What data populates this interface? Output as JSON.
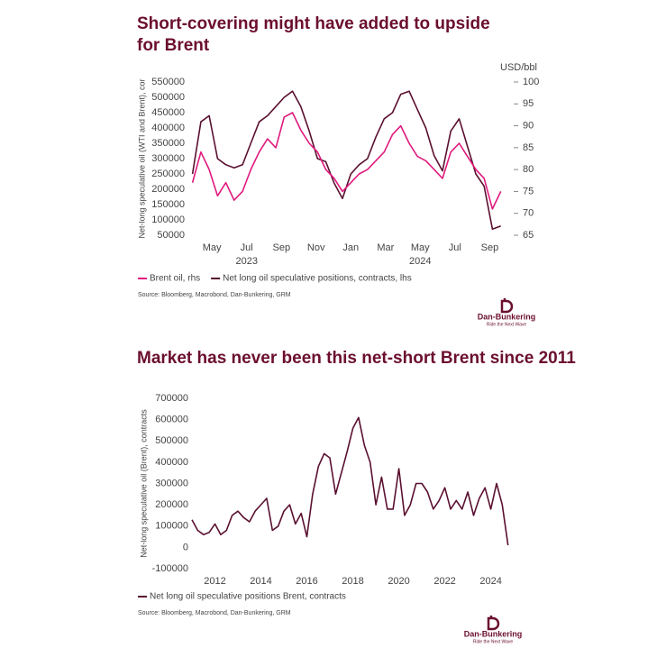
{
  "chart_data": [
    {
      "type": "line",
      "title": "Short-covering might have added to upside for Brent",
      "ylabel": "Net-long speculative oil (WTI and Brent), cor",
      "y2label": "USD/bbl",
      "x": [
        2023.24,
        2023.28,
        2023.32,
        2023.36,
        2023.4,
        2023.44,
        2023.48,
        2023.52,
        2023.56,
        2023.6,
        2023.64,
        2023.68,
        2023.72,
        2023.76,
        2023.8,
        2023.84,
        2023.88,
        2023.92,
        2023.96,
        2024.0,
        2024.04,
        2024.08,
        2024.12,
        2024.16,
        2024.2,
        2024.24,
        2024.28,
        2024.32,
        2024.36,
        2024.4,
        2024.44,
        2024.48,
        2024.52,
        2024.56,
        2024.6,
        2024.64,
        2024.68,
        2024.72
      ],
      "series": [
        {
          "name": "Brent oil, rhs",
          "color": "#e0197d",
          "axis": "y2",
          "values": [
            77,
            84,
            80,
            74,
            77,
            73,
            75,
            80,
            84,
            87,
            85,
            92,
            93,
            89,
            86,
            84,
            80,
            78,
            75,
            77,
            79,
            80,
            82,
            84,
            88,
            90,
            86,
            83,
            82,
            80,
            78,
            84,
            86,
            83,
            80,
            78,
            71,
            75
          ]
        },
        {
          "name": "Net long oil speculative positions, contracts, lhs",
          "color": "#5a1030",
          "values": [
            250000,
            420000,
            440000,
            300000,
            280000,
            270000,
            280000,
            350000,
            420000,
            440000,
            470000,
            500000,
            520000,
            470000,
            390000,
            300000,
            290000,
            220000,
            170000,
            250000,
            280000,
            300000,
            370000,
            430000,
            450000,
            510000,
            520000,
            460000,
            400000,
            310000,
            260000,
            390000,
            430000,
            340000,
            250000,
            210000,
            70000,
            80000
          ]
        }
      ],
      "xlim": [
        2023.22,
        2024.73
      ],
      "xticks": [
        {
          "value": 2023.333,
          "label": "May"
        },
        {
          "value": 2023.5,
          "label": "Jul"
        },
        {
          "value": 2023.667,
          "label": "Sep"
        },
        {
          "value": 2023.833,
          "label": "Nov"
        },
        {
          "value": 2024.0,
          "label": "Jan"
        },
        {
          "value": 2024.167,
          "label": "Mar"
        },
        {
          "value": 2024.333,
          "label": "May"
        },
        {
          "value": 2024.5,
          "label": "Jul"
        },
        {
          "value": 2024.667,
          "label": "Sep"
        }
      ],
      "year_labels": [
        {
          "value": 2023.5,
          "label": "2023"
        },
        {
          "value": 2024.333,
          "label": "2024"
        }
      ],
      "ylim": [
        50000,
        550000
      ],
      "yticks": [
        550000,
        500000,
        450000,
        400000,
        350000,
        300000,
        250000,
        200000,
        150000,
        100000,
        50000
      ],
      "y2lim": [
        65,
        100
      ],
      "y2ticks": [
        100,
        95,
        90,
        85,
        80,
        75,
        70,
        65
      ],
      "legend": "bottom-left",
      "source": "Source: Bloomberg, Macrobond, Dan-Bunkering, GRM"
    },
    {
      "type": "line",
      "title": "Market has never been this net-short Brent since 2011",
      "ylabel": "Net-long speculative oil (Brent), contracts",
      "x": [
        2011.0,
        2011.25,
        2011.5,
        2011.75,
        2012.0,
        2012.25,
        2012.5,
        2012.75,
        2013.0,
        2013.25,
        2013.5,
        2013.75,
        2014.0,
        2014.25,
        2014.5,
        2014.75,
        2015.0,
        2015.25,
        2015.5,
        2015.75,
        2016.0,
        2016.25,
        2016.5,
        2016.75,
        2017.0,
        2017.25,
        2017.5,
        2017.75,
        2018.0,
        2018.25,
        2018.5,
        2018.75,
        2019.0,
        2019.25,
        2019.5,
        2019.75,
        2020.0,
        2020.25,
        2020.5,
        2020.75,
        2021.0,
        2021.25,
        2021.5,
        2021.75,
        2022.0,
        2022.25,
        2022.5,
        2022.75,
        2023.0,
        2023.25,
        2023.5,
        2023.75,
        2024.0,
        2024.25,
        2024.5,
        2024.75
      ],
      "series": [
        {
          "name": "Net long oil speculative positions Brent, contracts",
          "color": "#5a1030",
          "values": [
            130000,
            80000,
            60000,
            70000,
            110000,
            60000,
            80000,
            150000,
            170000,
            140000,
            120000,
            170000,
            200000,
            230000,
            80000,
            100000,
            170000,
            200000,
            110000,
            160000,
            50000,
            250000,
            380000,
            440000,
            420000,
            250000,
            350000,
            450000,
            560000,
            610000,
            480000,
            400000,
            200000,
            330000,
            180000,
            180000,
            370000,
            150000,
            200000,
            300000,
            300000,
            260000,
            180000,
            220000,
            280000,
            180000,
            220000,
            180000,
            260000,
            150000,
            230000,
            280000,
            180000,
            300000,
            200000,
            10000
          ]
        }
      ],
      "xlim": [
        2011.0,
        2024.8
      ],
      "xticks": [
        2012,
        2014,
        2016,
        2018,
        2020,
        2022,
        2024
      ],
      "ylim": [
        -100000,
        700000
      ],
      "yticks": [
        700000,
        600000,
        500000,
        400000,
        300000,
        200000,
        100000,
        0,
        -100000
      ],
      "legend": "bottom-left",
      "source": "Source: Bloomberg, Macrobond, Dan-Bunkering, GRM"
    }
  ],
  "logo": {
    "name": "Dan-Bunkering",
    "tagline": "Ride the Next Wave"
  }
}
